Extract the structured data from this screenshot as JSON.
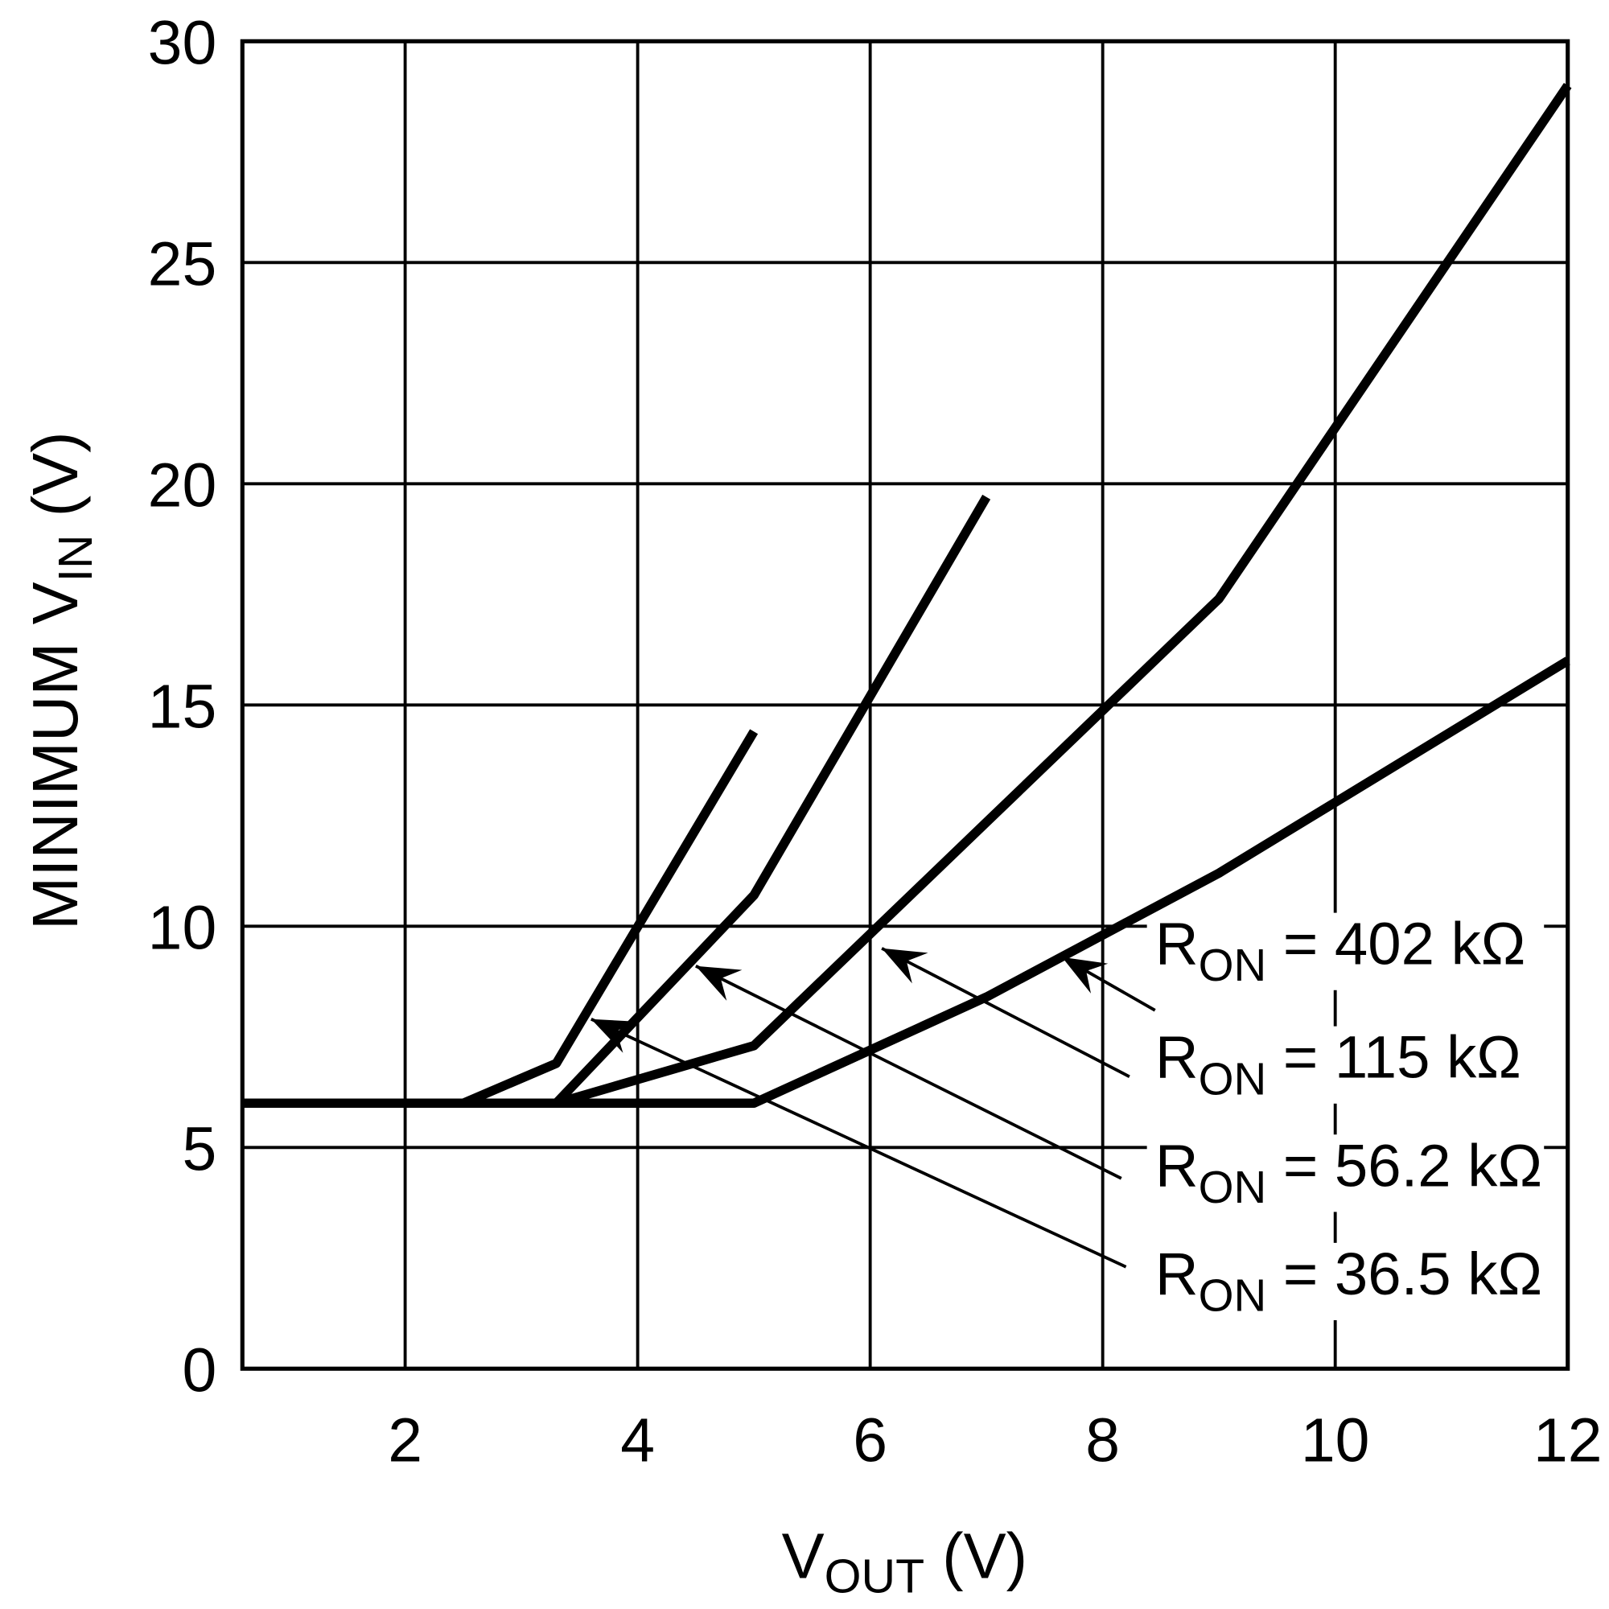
{
  "chart_data": {
    "type": "line",
    "title": "",
    "xlabel": {
      "main": "V",
      "sub": "OUT",
      "unit": " (V)"
    },
    "ylabel": {
      "main": "MINIMUM V",
      "sub": "IN",
      "unit": " (V)"
    },
    "xlim": [
      0.6,
      12
    ],
    "ylim": [
      0,
      30
    ],
    "xticks": [
      2,
      4,
      6,
      8,
      10,
      12
    ],
    "yticks": [
      0,
      5,
      10,
      15,
      20,
      25,
      30
    ],
    "grid": true,
    "line_color": "#000000",
    "series": [
      {
        "name": "RON = 36.5 kΩ",
        "x": [
          2.5,
          3.3,
          5.0
        ],
        "y": [
          6.0,
          6.9,
          14.4
        ]
      },
      {
        "name": "RON = 56.2 kΩ",
        "x": [
          3.3,
          5.0,
          7.0
        ],
        "y": [
          6.0,
          10.7,
          19.7
        ]
      },
      {
        "name": "RON = 115 kΩ",
        "x": [
          3.3,
          5.0,
          9.0,
          12.0
        ],
        "y": [
          6.0,
          7.3,
          17.4,
          29.0
        ]
      },
      {
        "name": "RON = 402 kΩ",
        "x": [
          0.6,
          5.0,
          7.0,
          9.0,
          12.0
        ],
        "y": [
          6.0,
          6.0,
          8.4,
          11.2,
          16.0
        ]
      }
    ],
    "annotations": [
      {
        "label": {
          "r": "R",
          "sub": "ON",
          "value": " = 402 kΩ"
        },
        "from": [
          8.45,
          8.1
        ],
        "to": [
          7.65,
          9.3
        ]
      },
      {
        "label": {
          "r": "R",
          "sub": "ON",
          "value": " = 115 kΩ"
        },
        "from": [
          8.23,
          6.6
        ],
        "to": [
          6.1,
          9.5
        ]
      },
      {
        "label": {
          "r": "R",
          "sub": "ON",
          "value": " = 56.2 kΩ"
        },
        "from": [
          8.16,
          4.3
        ],
        "to": [
          4.5,
          9.1
        ]
      },
      {
        "label": {
          "r": "R",
          "sub": "ON",
          "value": " = 36.5 kΩ"
        },
        "from": [
          8.2,
          2.3
        ],
        "to": [
          3.6,
          7.9
        ]
      }
    ]
  }
}
